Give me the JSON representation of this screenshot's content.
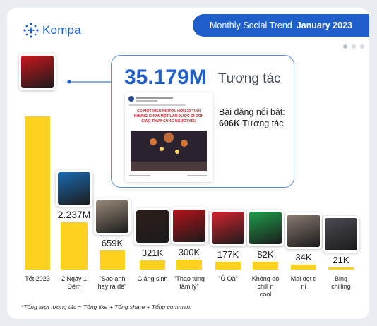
{
  "brand": {
    "name": "Kompa",
    "color": "#1f5fc9"
  },
  "header": {
    "label": "Monthly Social Trend",
    "month": "January 2023"
  },
  "callout": {
    "value_label": "35.179M",
    "unit": "Tương tác",
    "featured_label": "Bài đăng nổi bật:",
    "featured_value": "606K",
    "featured_unit": "Tương tác",
    "post_headline": "CÓ MỘT KIỂU NGƯỜI: HƠN 20 TUỔI NHƯNG CHƯA MỘT LẦN ĐƯỢC ĐI ĐÓN GIAO THỪA CÙNG NGƯỜI YÊU"
  },
  "chart_data": {
    "type": "bar",
    "categories": [
      "Tết 2023",
      "2 Ngày 1 Đêm",
      "\"Sao anh hay ra dế\"",
      "Giáng sinh",
      "\"Thao túng tâm lý\"",
      "\"Ú Oà\"",
      "Không độ chill n cool",
      "Mai đẹt ti ni",
      "Bing chilling"
    ],
    "values": [
      35.179,
      2.237,
      0.659,
      0.321,
      0.3,
      0.177,
      0.082,
      0.034,
      0.021
    ],
    "data_labels": [
      "",
      "2.237M",
      "659K",
      "321K",
      "300K",
      "177K",
      "82K",
      "34K",
      "21K"
    ],
    "unit": "interactions (millions)",
    "bar_color": "#ffd21f"
  },
  "footnote": "*Tổng lượt tương tác = Tổng like + Tổng share + Tổng comment",
  "pagination": {
    "count": 3,
    "active": 0
  }
}
